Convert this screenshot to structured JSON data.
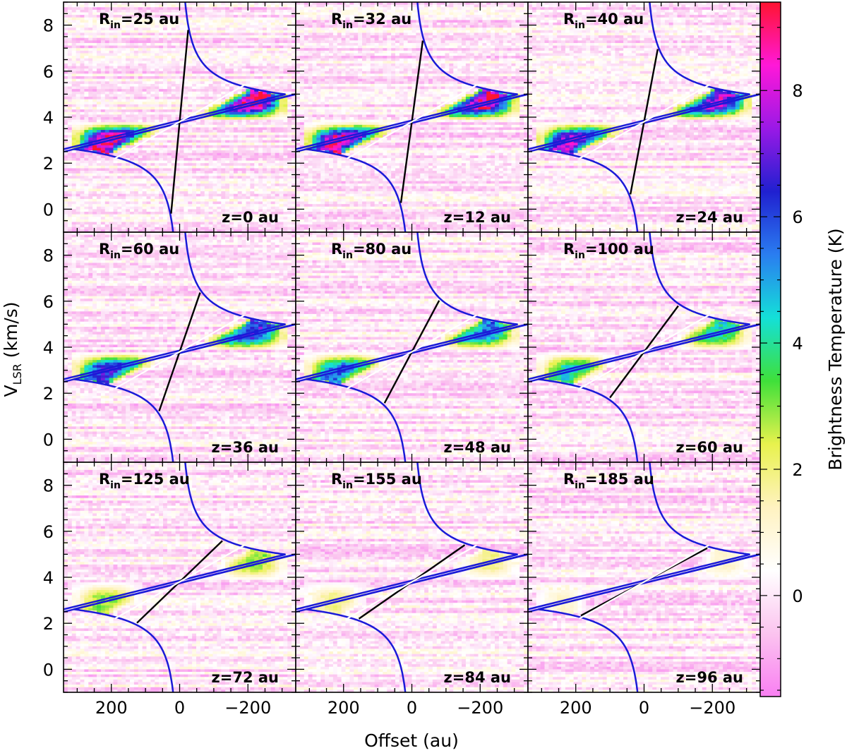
{
  "colors": {
    "envelope": "#1a1ad8",
    "fit_line": "#000000",
    "white_line": "#ffffff",
    "contour": "#000000",
    "frame": "#000000"
  },
  "colorbar": {
    "label": "Brightness Temperature  (K)",
    "min": -1.6,
    "max": 9.4,
    "ticks": [
      0,
      2,
      4,
      6,
      8
    ],
    "tick_labels": [
      "0",
      "2",
      "4",
      "6",
      "8"
    ],
    "stops": [
      "#f97ff2",
      "#fbc4ef",
      "#ffffff",
      "#fff2c0",
      "#e8f24d",
      "#3fe03a",
      "#14e0d8",
      "#2a7df0",
      "#2020d0",
      "#9a19e6",
      "#ff18d8",
      "#ff1430"
    ]
  },
  "axes": {
    "xlabel": "Offset (au)",
    "ylabel_main": "V",
    "ylabel_sub": "LSR",
    "ylabel_unit": " (km/s)",
    "xlim": [
      340,
      -340
    ],
    "ylim": [
      -1,
      9
    ],
    "x_ticks": [
      200,
      0,
      -200
    ],
    "x_tick_labels": [
      "200",
      "0",
      "−200"
    ],
    "y_ticks": [
      0,
      2,
      4,
      6,
      8
    ],
    "y_tick_labels": [
      "0",
      "2",
      "4",
      "6",
      "8"
    ]
  },
  "chart_data": {
    "type": "heatmap",
    "description": "Position-velocity diagrams (9 panels) with envelope curves",
    "systemic_velocity": 3.8,
    "panels": [
      {
        "rin_prefix": "R",
        "rin_sub": "in",
        "rin_value": "=25 au",
        "z_label": "z=0 au",
        "rin": 25,
        "peak": 9.0,
        "frac": 1.0
      },
      {
        "rin_prefix": "R",
        "rin_sub": "in",
        "rin_value": "=32 au",
        "z_label": "z=12 au",
        "rin": 32,
        "peak": 8.7,
        "frac": 0.97
      },
      {
        "rin_prefix": "R",
        "rin_sub": "in",
        "rin_value": "=40 au",
        "z_label": "z=24 au",
        "rin": 40,
        "peak": 7.8,
        "frac": 0.92
      },
      {
        "rin_prefix": "R",
        "rin_sub": "in",
        "rin_value": "=60 au",
        "z_label": "z=36 au",
        "rin": 60,
        "peak": 6.6,
        "frac": 0.86
      },
      {
        "rin_prefix": "R",
        "rin_sub": "in",
        "rin_value": "=80 au",
        "z_label": "z=48 au",
        "rin": 80,
        "peak": 5.6,
        "frac": 0.8
      },
      {
        "rin_prefix": "R",
        "rin_sub": "in",
        "rin_value": "=100 au",
        "z_label": "z=60 au",
        "rin": 100,
        "peak": 4.4,
        "frac": 0.74
      },
      {
        "rin_prefix": "R",
        "rin_sub": "in",
        "rin_value": "=125 au",
        "z_label": "z=72 au",
        "rin": 125,
        "peak": 3.0,
        "frac": 0.62
      },
      {
        "rin_prefix": "R",
        "rin_sub": "in",
        "rin_value": "=155 au",
        "z_label": "z=84 au",
        "rin": 155,
        "peak": 1.9,
        "frac": 0.52
      },
      {
        "rin_prefix": "R",
        "rin_sub": "in",
        "rin_value": "=185 au",
        "z_label": "z=96 au",
        "rin": 185,
        "peak": 1.2,
        "frac": 0.44
      }
    ]
  }
}
